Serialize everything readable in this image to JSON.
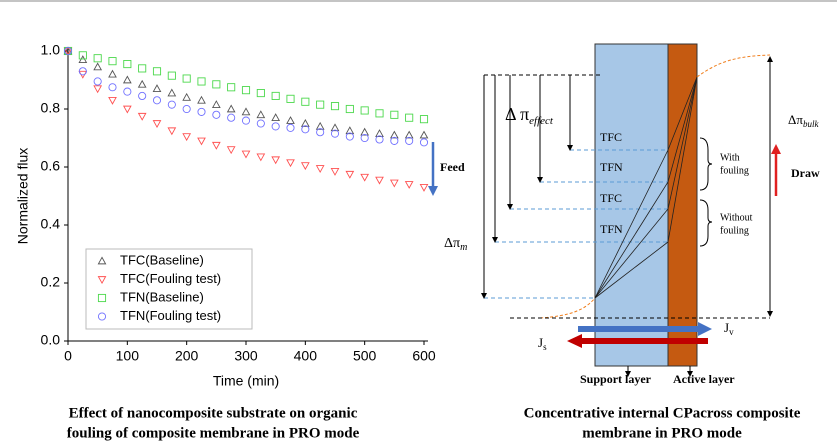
{
  "chart_data": {
    "type": "scatter",
    "x_label": "Time (min)",
    "y_label": "Normalized flux",
    "x": [
      0,
      25,
      50,
      75,
      100,
      125,
      150,
      175,
      200,
      225,
      250,
      275,
      300,
      325,
      350,
      375,
      400,
      425,
      450,
      475,
      500,
      525,
      550,
      575,
      600
    ],
    "series": [
      {
        "name": "TFC(Baseline)",
        "color": "#555555",
        "marker": "^",
        "values": [
          1.0,
          0.97,
          0.945,
          0.92,
          0.9,
          0.885,
          0.87,
          0.855,
          0.84,
          0.83,
          0.815,
          0.8,
          0.79,
          0.78,
          0.77,
          0.76,
          0.75,
          0.74,
          0.735,
          0.725,
          0.72,
          0.715,
          0.71,
          0.71,
          0.71
        ]
      },
      {
        "name": "TFC(Fouling test)",
        "color": "#ff5050",
        "marker": "v",
        "values": [
          1.0,
          0.92,
          0.87,
          0.83,
          0.8,
          0.775,
          0.75,
          0.725,
          0.705,
          0.69,
          0.675,
          0.66,
          0.645,
          0.635,
          0.625,
          0.615,
          0.605,
          0.595,
          0.585,
          0.575,
          0.565,
          0.555,
          0.545,
          0.54,
          0.53
        ]
      },
      {
        "name": "TFN(Baseline)",
        "color": "#4cd84c",
        "marker": "s",
        "values": [
          1.0,
          0.985,
          0.975,
          0.965,
          0.955,
          0.94,
          0.93,
          0.915,
          0.905,
          0.895,
          0.885,
          0.875,
          0.865,
          0.855,
          0.845,
          0.835,
          0.825,
          0.815,
          0.81,
          0.8,
          0.795,
          0.785,
          0.78,
          0.77,
          0.765
        ]
      },
      {
        "name": "TFN(Fouling test)",
        "color": "#7070ff",
        "marker": "o",
        "values": [
          1.0,
          0.93,
          0.895,
          0.875,
          0.86,
          0.845,
          0.83,
          0.815,
          0.8,
          0.79,
          0.78,
          0.77,
          0.76,
          0.75,
          0.74,
          0.735,
          0.73,
          0.72,
          0.715,
          0.705,
          0.7,
          0.695,
          0.69,
          0.69,
          0.685
        ]
      }
    ],
    "xlim": [
      0,
      600
    ],
    "xticks": [
      0,
      100,
      200,
      300,
      400,
      500,
      600
    ],
    "ylim": [
      0,
      1.0
    ],
    "yticks": [
      {
        "value": 0,
        "label": "0.0"
      },
      0.2,
      0.4,
      0.6,
      0.8,
      {
        "value": 1,
        "label": "1.0"
      }
    ],
    "legend": "lower left",
    "caption": [
      "Effect of nanocomposite substrate on organic",
      "fouling of composite membrane in PRO mode"
    ]
  },
  "diagram": {
    "effect": {
      "symbol": "Δ π",
      "subscript": "effect"
    },
    "membrane": {
      "symbol": "Δπ",
      "subscript": "m"
    },
    "bulk": {
      "symbol": "Δπ",
      "subscript": "bulk"
    },
    "feed": "Feed",
    "draw": "Draw",
    "levels": [
      "TFC",
      "TFN",
      "TFC",
      "TFN"
    ],
    "with_fouling": [
      "With",
      "fouling"
    ],
    "without_fouling": [
      "Without",
      "fouling"
    ],
    "js": {
      "symbol": "J",
      "subscript": "s"
    },
    "jv": {
      "symbol": "J",
      "subscript": "v"
    },
    "support_layer": "Support layer",
    "active_layer": "Active layer",
    "caption": [
      "Concentrative internal CPacross composite",
      "membrane in PRO mode"
    ]
  }
}
